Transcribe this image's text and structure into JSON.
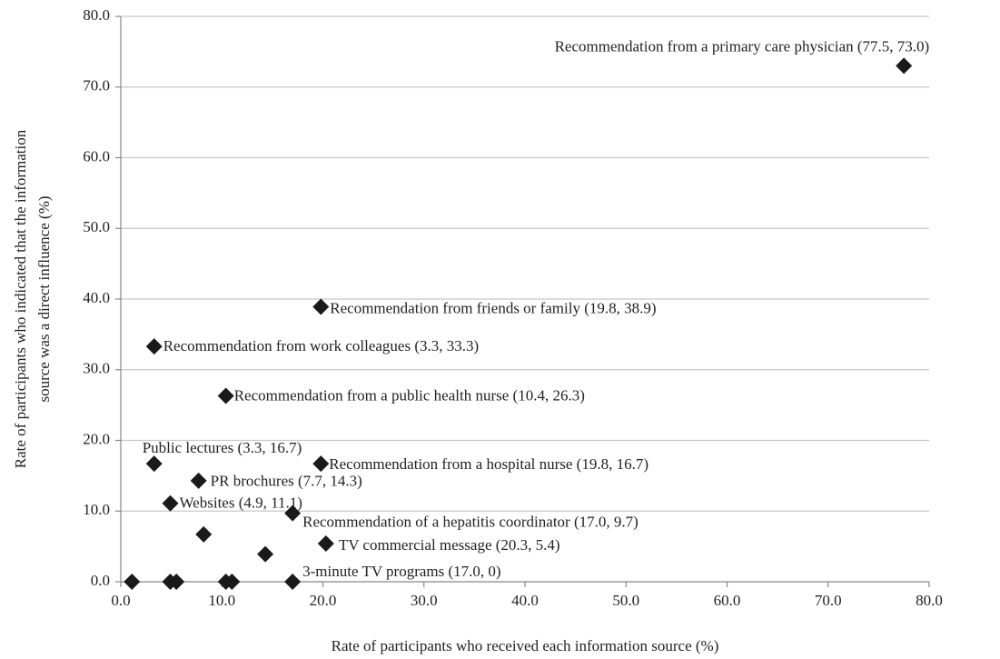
{
  "chart_data": {
    "type": "scatter",
    "x_label": "Rate of participants who received each information source (%)",
    "y_label": [
      "Rate of participants who indicated that the information",
      "source was a direct influence (%)"
    ],
    "x": [
      77.5,
      19.8,
      3.3,
      10.4,
      3.3,
      19.8,
      7.7,
      4.9,
      17.0,
      20.3,
      17.0,
      8.2,
      14.3,
      1.1,
      4.9,
      5.5,
      10.4,
      11.0
    ],
    "y": [
      73.0,
      38.9,
      33.3,
      26.3,
      16.7,
      16.7,
      14.3,
      11.1,
      9.7,
      5.4,
      0,
      6.7,
      3.9,
      0,
      0,
      0,
      0,
      0
    ],
    "labels": [
      "Recommendation from a primary care physician (77.5, 73.0)",
      "Recommendation from friends or family (19.8, 38.9)",
      "Recommendation from work colleagues (3.3, 33.3)",
      "Recommendation from a public health nurse (10.4, 26.3)",
      "Public lectures (3.3, 16.7)",
      "Recommendation from a hospital nurse (19.8, 16.7)",
      "PR brochures (7.7, 14.3)",
      "Websites (4.9, 11.1)",
      "Recommendation of a hepatitis coordinator (17.0, 9.7)",
      "TV commercial message (20.3, 5.4)",
      "3-minute TV programs (17.0, 0)",
      null,
      null,
      null,
      null,
      null,
      null,
      null
    ],
    "color": "#1a1a1a",
    "xlim": [
      0,
      80
    ],
    "ylim": [
      0,
      80
    ],
    "xticks": [
      {
        "value": 0,
        "label": "0.0"
      },
      {
        "value": 10,
        "label": "10.0"
      },
      {
        "value": 20,
        "label": "20.0"
      },
      {
        "value": 30,
        "label": "30.0"
      },
      {
        "value": 40,
        "label": "40.0"
      },
      {
        "value": 50,
        "label": "50.0"
      },
      {
        "value": 60,
        "label": "60.0"
      },
      {
        "value": 70,
        "label": "70.0"
      },
      {
        "value": 80,
        "label": "80.0"
      }
    ],
    "yticks": [
      {
        "value": 0,
        "label": "0.0"
      },
      {
        "value": 10,
        "label": "10.0"
      },
      {
        "value": 20,
        "label": "20.0"
      },
      {
        "value": 30,
        "label": "30.0"
      },
      {
        "value": 40,
        "label": "40.0"
      },
      {
        "value": 50,
        "label": "50.0"
      },
      {
        "value": 60,
        "label": "60.0"
      },
      {
        "value": 70,
        "label": "70.0"
      },
      {
        "value": 80,
        "label": "80.0"
      }
    ],
    "grid": true
  }
}
